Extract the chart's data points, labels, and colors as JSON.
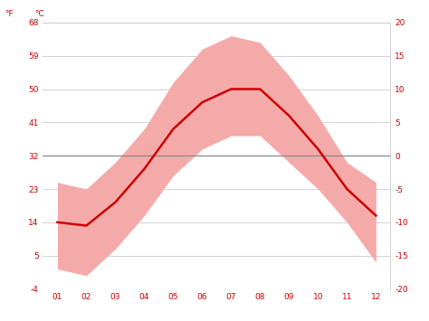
{
  "months": [
    1,
    2,
    3,
    4,
    5,
    6,
    7,
    8,
    9,
    10,
    11,
    12
  ],
  "month_labels": [
    "01",
    "02",
    "03",
    "04",
    "05",
    "06",
    "07",
    "08",
    "09",
    "10",
    "11",
    "12"
  ],
  "avg_temp": [
    -10,
    -10.5,
    -7,
    -2,
    4,
    8,
    10,
    10,
    6,
    1,
    -5,
    -9
  ],
  "max_temp": [
    -4,
    -5,
    -1,
    4,
    11,
    16,
    18,
    17,
    12,
    6,
    -1,
    -4
  ],
  "min_temp": [
    -17,
    -18,
    -14,
    -9,
    -3,
    1,
    3,
    3,
    -1,
    -5,
    -10,
    -16
  ],
  "avg_color": "#cc0000",
  "band_color": "#f5aaaa",
  "zero_line_color": "#888888",
  "grid_color": "#cccccc",
  "tick_label_color": "#cc0000",
  "ylim_c": [
    -20,
    20
  ],
  "yticks_c": [
    -20,
    -15,
    -10,
    -5,
    0,
    5,
    10,
    15,
    20
  ],
  "yticks_f": [
    -4,
    5,
    14,
    23,
    32,
    41,
    50,
    59,
    68
  ],
  "background_color": "#ffffff",
  "figsize": [
    4.74,
    3.55
  ],
  "dpi": 100
}
